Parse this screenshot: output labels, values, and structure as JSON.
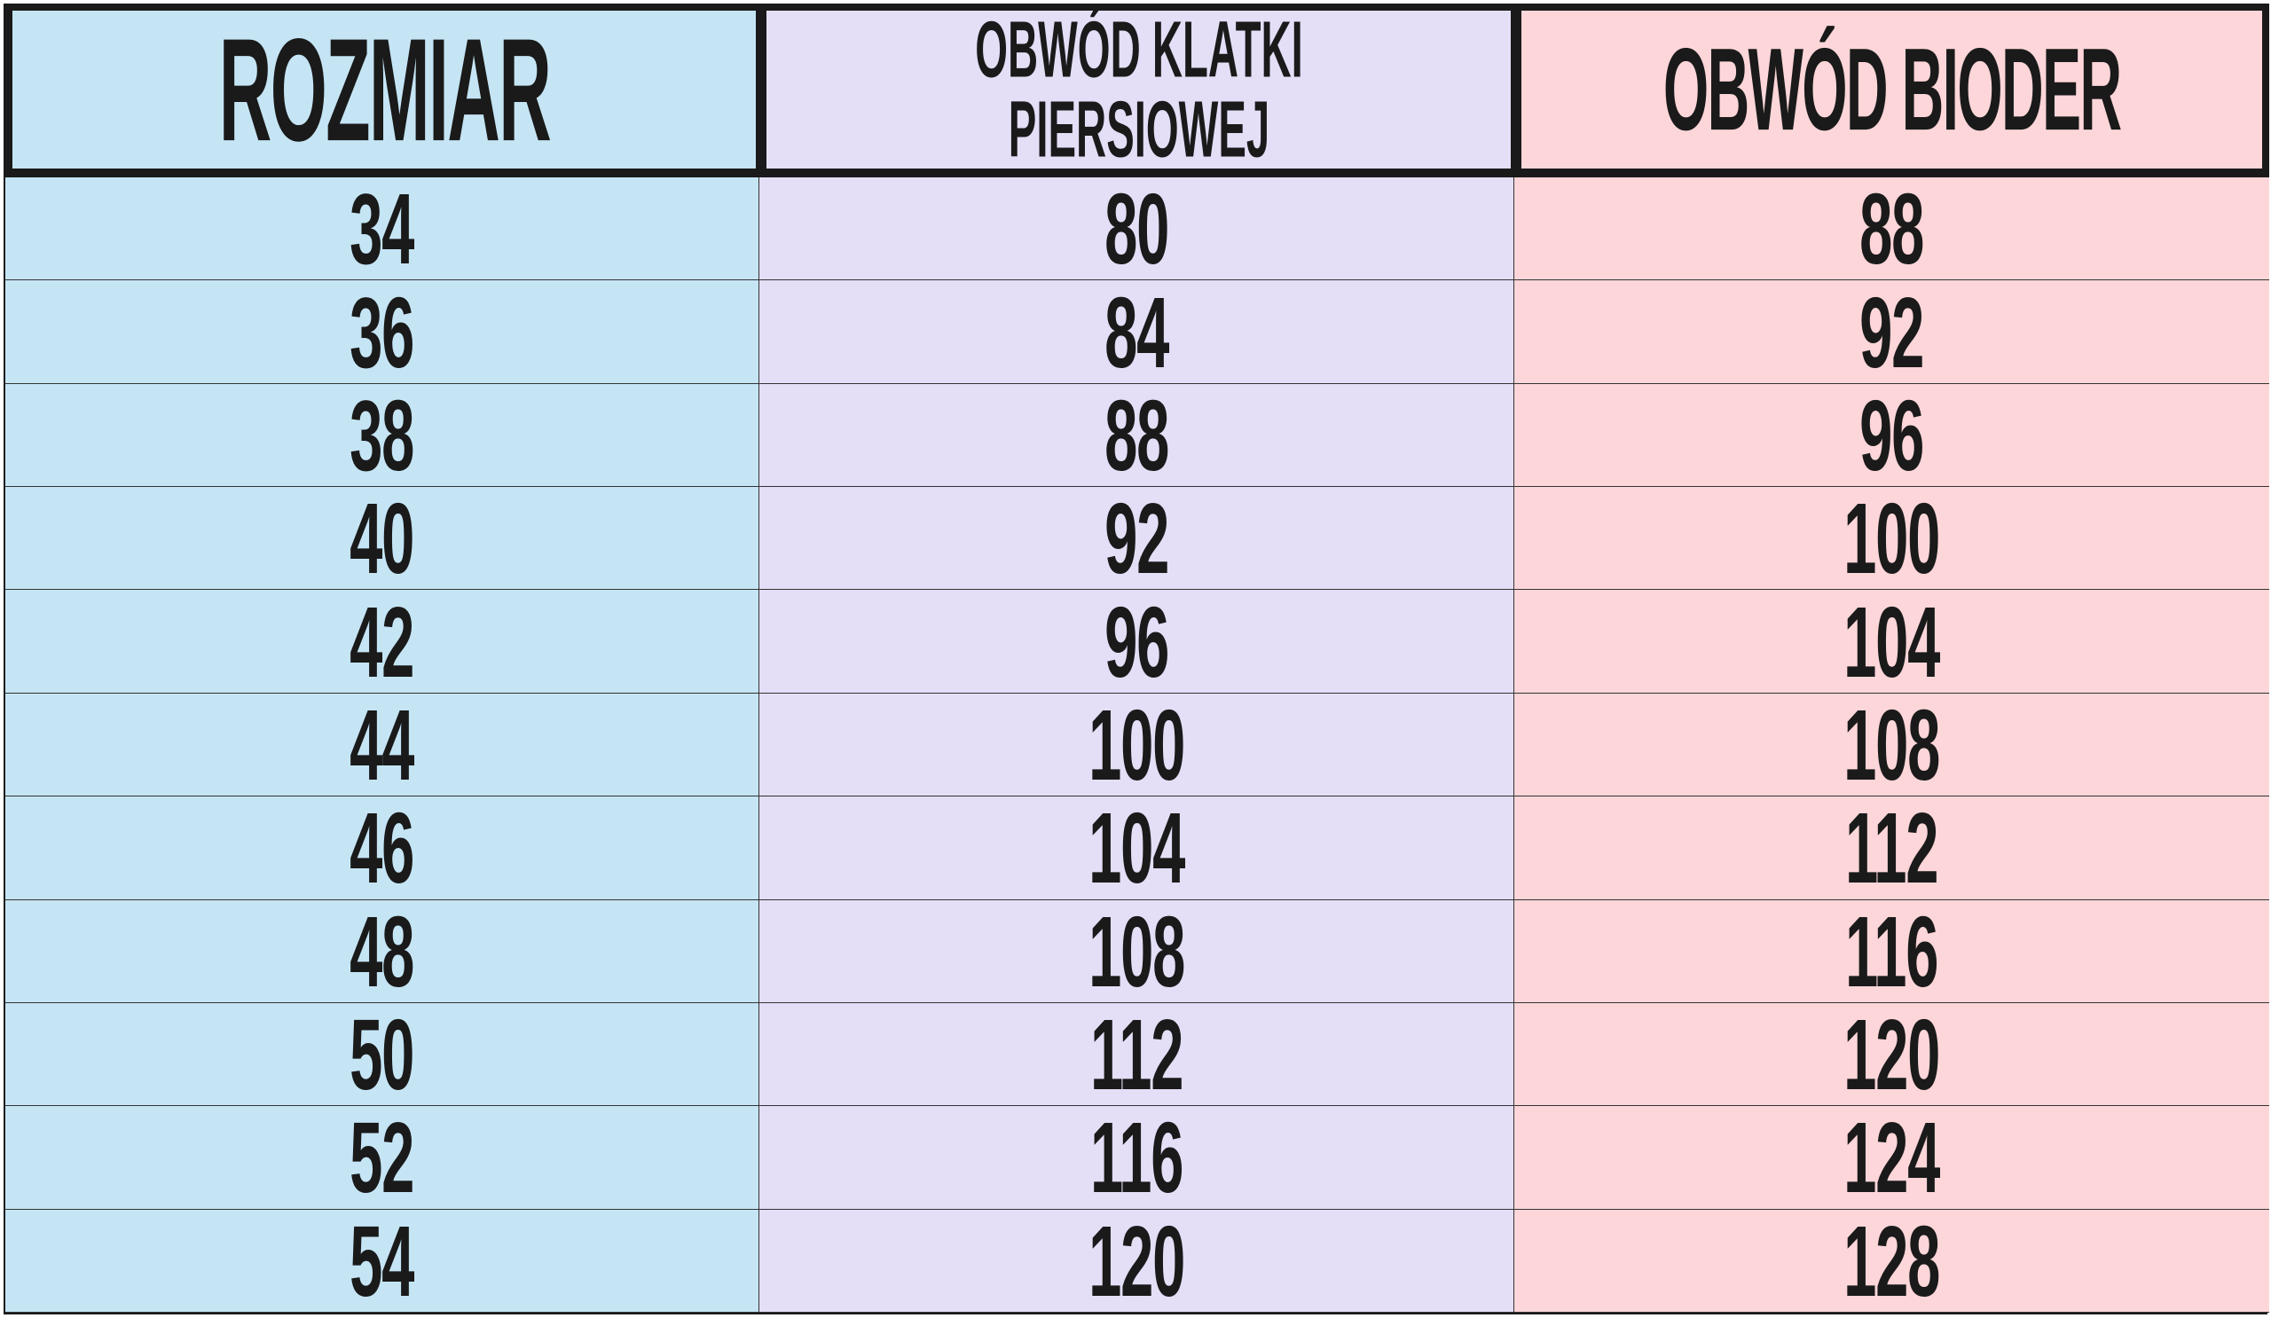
{
  "headers": {
    "size": "ROZMIAR",
    "chest_line1": "OBWÓD KLATKI",
    "chest_line2": "PIERSIOWEJ",
    "hips": "OBWÓD BIODER"
  },
  "colors": {
    "size_column": "#c5e5f5",
    "chest_column": "#e4def7",
    "hips_column": "#fdd6d9",
    "border": "#1a1a1a"
  },
  "rows": [
    {
      "size": "34",
      "chest": "80",
      "hips": "88"
    },
    {
      "size": "36",
      "chest": "84",
      "hips": "92"
    },
    {
      "size": "38",
      "chest": "88",
      "hips": "96"
    },
    {
      "size": "40",
      "chest": "92",
      "hips": "100"
    },
    {
      "size": "42",
      "chest": "96",
      "hips": "104"
    },
    {
      "size": "44",
      "chest": "100",
      "hips": "108"
    },
    {
      "size": "46",
      "chest": "104",
      "hips": "112"
    },
    {
      "size": "48",
      "chest": "108",
      "hips": "116"
    },
    {
      "size": "50",
      "chest": "112",
      "hips": "120"
    },
    {
      "size": "52",
      "chest": "116",
      "hips": "124"
    },
    {
      "size": "54",
      "chest": "120",
      "hips": "128"
    }
  ]
}
